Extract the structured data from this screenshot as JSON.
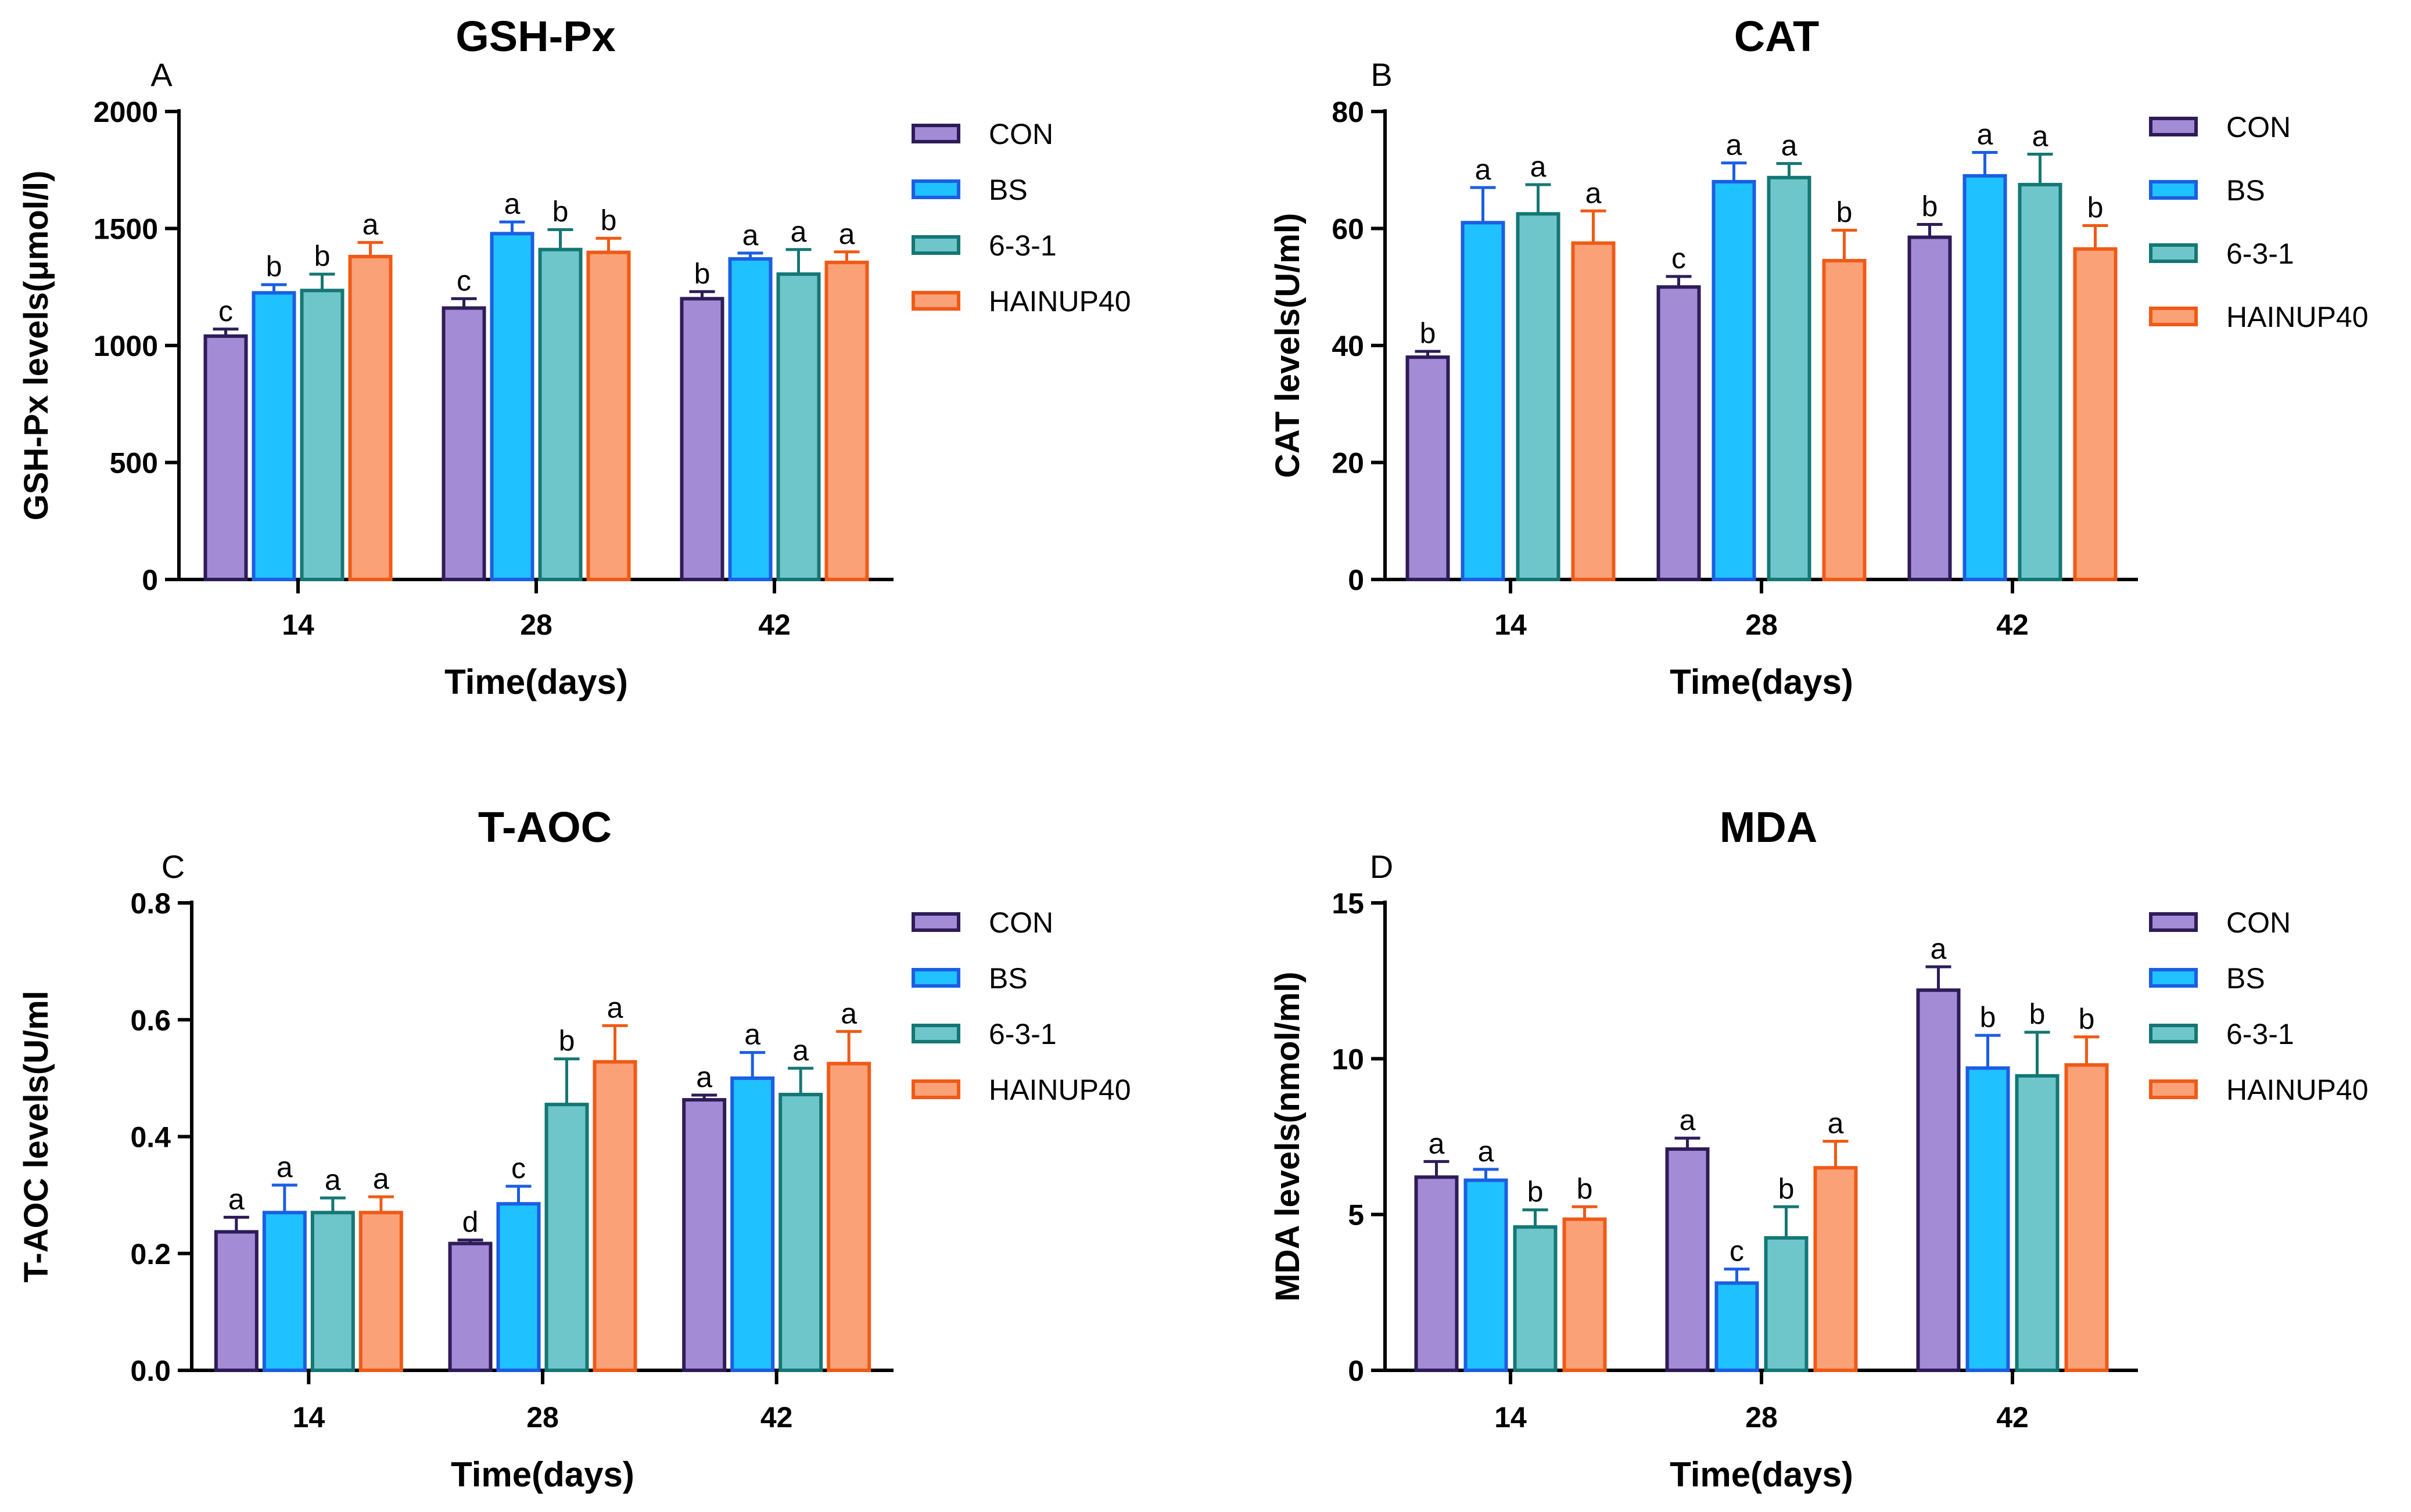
{
  "chart_data": [
    {
      "panel": "A",
      "type": "bar",
      "title": "GSH-Px",
      "xlabel": "Time(days)",
      "ylabel": "GSH-Px levels(μmol/l)",
      "ylim": [
        0,
        2000
      ],
      "yticks": [
        "0",
        "500",
        "1000",
        "1500",
        "2000"
      ],
      "categories": [
        "14",
        "28",
        "42"
      ],
      "legend_position": "top-right",
      "series": [
        {
          "name": "CON",
          "values": [
            1040,
            1160,
            1200
          ],
          "errors": [
            30,
            40,
            30
          ],
          "letters": [
            "c",
            "c",
            "b"
          ]
        },
        {
          "name": "BS",
          "values": [
            1225,
            1478,
            1370
          ],
          "errors": [
            35,
            50,
            25
          ],
          "letters": [
            "b",
            "a",
            "a"
          ]
        },
        {
          "name": "6-3-1",
          "values": [
            1235,
            1410,
            1305
          ],
          "errors": [
            70,
            85,
            105
          ],
          "letters": [
            "b",
            "b",
            "a"
          ]
        },
        {
          "name": "HAINUP40",
          "values": [
            1380,
            1398,
            1355
          ],
          "errors": [
            60,
            60,
            45
          ],
          "letters": [
            "a",
            "b",
            "a"
          ]
        }
      ]
    },
    {
      "panel": "B",
      "type": "bar",
      "title": "CAT",
      "xlabel": "Time(days)",
      "ylabel": "CAT levels(U/ml)",
      "ylim": [
        0,
        80
      ],
      "yticks": [
        "0",
        "20",
        "40",
        "60",
        "80"
      ],
      "categories": [
        "14",
        "28",
        "42"
      ],
      "legend_position": "top-right",
      "series": [
        {
          "name": "CON",
          "values": [
            38,
            50,
            58.5
          ],
          "errors": [
            1,
            1.8,
            2.2
          ],
          "letters": [
            "b",
            "c",
            "b"
          ]
        },
        {
          "name": "BS",
          "values": [
            61,
            68,
            69
          ],
          "errors": [
            6,
            3.2,
            4
          ],
          "letters": [
            "a",
            "a",
            "a"
          ]
        },
        {
          "name": "6-3-1",
          "values": [
            62.5,
            68.7,
            67.5
          ],
          "errors": [
            5,
            2.4,
            5.2
          ],
          "letters": [
            "a",
            "a",
            "a"
          ]
        },
        {
          "name": "HAINUP40",
          "values": [
            57.5,
            54.5,
            56.5
          ],
          "errors": [
            5.5,
            5.2,
            4
          ],
          "letters": [
            "a",
            "b",
            "b"
          ]
        }
      ]
    },
    {
      "panel": "C",
      "type": "bar",
      "title": "T-AOC",
      "xlabel": "Time(days)",
      "ylabel": "T-AOC levels(U/ml",
      "ylim": [
        0,
        0.8
      ],
      "yticks": [
        "0.0",
        "0.2",
        "0.4",
        "0.6",
        "0.8"
      ],
      "categories": [
        "14",
        "28",
        "42"
      ],
      "legend_position": "top-right",
      "series": [
        {
          "name": "CON",
          "values": [
            0.237,
            0.217,
            0.463
          ],
          "errors": [
            0.025,
            0.006,
            0.008
          ],
          "letters": [
            "a",
            "d",
            "a"
          ]
        },
        {
          "name": "BS",
          "values": [
            0.27,
            0.285,
            0.5
          ],
          "errors": [
            0.047,
            0.03,
            0.044
          ],
          "letters": [
            "a",
            "c",
            "a"
          ]
        },
        {
          "name": "6-3-1",
          "values": [
            0.27,
            0.455,
            0.472
          ],
          "errors": [
            0.025,
            0.078,
            0.045
          ],
          "letters": [
            "a",
            "b",
            "a"
          ]
        },
        {
          "name": "HAINUP40",
          "values": [
            0.27,
            0.528,
            0.525
          ],
          "errors": [
            0.027,
            0.062,
            0.055
          ],
          "letters": [
            "a",
            "a",
            "a"
          ]
        }
      ]
    },
    {
      "panel": "D",
      "type": "bar",
      "title": "MDA",
      "xlabel": "Time(days)",
      "ylabel": "MDA levels(nmol/ml)",
      "ylim": [
        0,
        15
      ],
      "yticks": [
        "0",
        "5",
        "10",
        "15"
      ],
      "categories": [
        "14",
        "28",
        "42"
      ],
      "legend_position": "top-right",
      "series": [
        {
          "name": "CON",
          "values": [
            6.2,
            7.1,
            12.2
          ],
          "errors": [
            0.5,
            0.35,
            0.75
          ],
          "letters": [
            "a",
            "a",
            "a"
          ]
        },
        {
          "name": "BS",
          "values": [
            6.1,
            2.8,
            9.7
          ],
          "errors": [
            0.35,
            0.45,
            1.05
          ],
          "letters": [
            "a",
            "c",
            "b"
          ]
        },
        {
          "name": "6-3-1",
          "values": [
            4.6,
            4.25,
            9.45
          ],
          "errors": [
            0.55,
            1.0,
            1.4
          ],
          "letters": [
            "b",
            "b",
            "b"
          ]
        },
        {
          "name": "HAINUP40",
          "values": [
            4.85,
            6.5,
            9.8
          ],
          "errors": [
            0.4,
            0.85,
            0.9
          ],
          "letters": [
            "b",
            "a",
            "b"
          ]
        }
      ]
    }
  ],
  "colors": {
    "CON": {
      "fill": "#A38BD6",
      "stroke": "#2E1C58"
    },
    "BS": {
      "fill": "#1FC1FF",
      "stroke": "#1B5EE3"
    },
    "6-3-1": {
      "fill": "#6EC6CB",
      "stroke": "#157774"
    },
    "HAINUP40": {
      "fill": "#FBA177",
      "stroke": "#F05A16"
    }
  }
}
